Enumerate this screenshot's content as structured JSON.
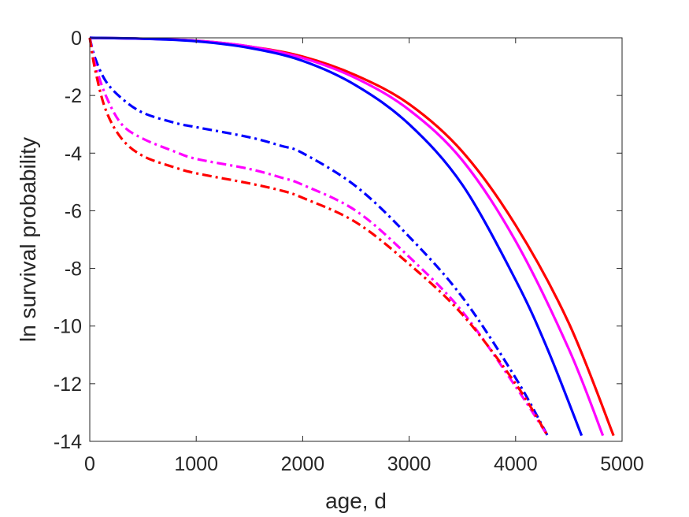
{
  "chart_data": {
    "type": "line",
    "title": "",
    "xlabel": "age, d",
    "ylabel": "ln survival probability",
    "xlim": [
      0,
      5000
    ],
    "ylim": [
      -14,
      0
    ],
    "xticks": [
      0,
      1000,
      2000,
      3000,
      4000,
      5000
    ],
    "yticks": [
      0,
      -2,
      -4,
      -6,
      -8,
      -10,
      -12,
      -14
    ],
    "xtick_labels": [
      "0",
      "1000",
      "2000",
      "3000",
      "4000",
      "5000"
    ],
    "ytick_labels": [
      "0",
      "-2",
      "-4",
      "-6",
      "-8",
      "-10",
      "-12",
      "-14"
    ],
    "grid": false,
    "legend": "none",
    "series": [
      {
        "color": "#ff0000",
        "style": "solid",
        "x": [
          0,
          500,
          1000,
          1500,
          2000,
          2500,
          3000,
          3500,
          4000,
          4500,
          4920
        ],
        "y": [
          0,
          -0.03,
          -0.1,
          -0.3,
          -0.65,
          -1.3,
          -2.3,
          -3.95,
          -6.5,
          -9.9,
          -13.8
        ]
      },
      {
        "color": "#ff00ff",
        "style": "solid",
        "x": [
          0,
          500,
          1000,
          1500,
          2000,
          2500,
          3000,
          3500,
          4000,
          4500,
          4820
        ],
        "y": [
          0,
          -0.03,
          -0.1,
          -0.3,
          -0.7,
          -1.4,
          -2.5,
          -4.25,
          -7.05,
          -10.8,
          -13.8
        ]
      },
      {
        "color": "#0000ff",
        "style": "solid",
        "x": [
          0,
          500,
          1000,
          1500,
          2000,
          2500,
          3000,
          3500,
          4000,
          4300,
          4620
        ],
        "y": [
          0,
          -0.03,
          -0.12,
          -0.35,
          -0.8,
          -1.65,
          -3.0,
          -5.1,
          -8.4,
          -10.8,
          -13.8
        ]
      },
      {
        "color": "#0000ff",
        "style": "dashdot",
        "x": [
          0,
          50,
          150,
          300,
          500,
          800,
          1000,
          1500,
          1800,
          2000,
          2500,
          3000,
          3500,
          4000,
          4300
        ],
        "y": [
          0,
          -0.7,
          -1.5,
          -2.1,
          -2.6,
          -2.95,
          -3.1,
          -3.45,
          -3.75,
          -4.0,
          -5.15,
          -6.9,
          -9.0,
          -11.8,
          -13.8
        ]
      },
      {
        "color": "#ff00ff",
        "style": "dashdot",
        "x": [
          0,
          50,
          150,
          300,
          500,
          800,
          1000,
          1500,
          1800,
          2000,
          2500,
          3000,
          3500,
          4000,
          4300
        ],
        "y": [
          0,
          -0.9,
          -2.0,
          -3.0,
          -3.5,
          -3.95,
          -4.2,
          -4.55,
          -4.85,
          -5.1,
          -6.0,
          -7.6,
          -9.5,
          -12.1,
          -13.8
        ]
      },
      {
        "color": "#ff0000",
        "style": "dashdot",
        "x": [
          0,
          50,
          150,
          300,
          500,
          800,
          1000,
          1500,
          1800,
          2000,
          2500,
          3000,
          3500,
          4000,
          4300
        ],
        "y": [
          0,
          -1.1,
          -2.5,
          -3.5,
          -4.1,
          -4.5,
          -4.7,
          -5.05,
          -5.3,
          -5.55,
          -6.4,
          -7.85,
          -9.6,
          -12.0,
          -13.8
        ]
      }
    ]
  }
}
